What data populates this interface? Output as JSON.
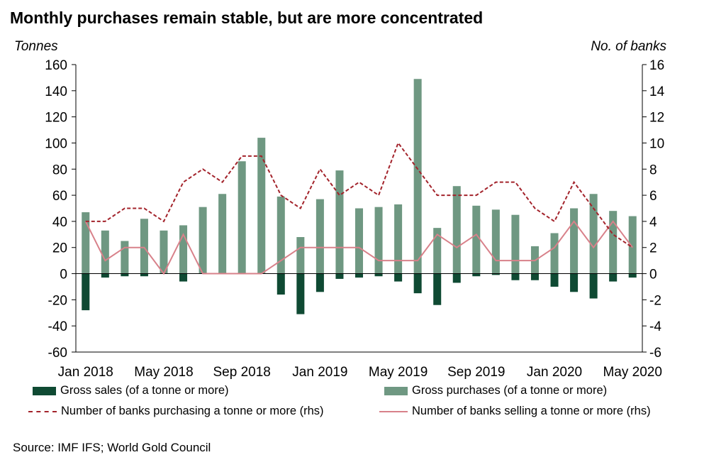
{
  "title": "Monthly purchases remain stable, but are more concentrated",
  "source": "Source: IMF IFS; World Gold Council",
  "colors": {
    "gross_sales": "#0f4a33",
    "gross_purchases": "#6f9882",
    "banks_purchasing": "#a3232b",
    "banks_selling": "#d8818a"
  },
  "chart_data": {
    "type": "bar",
    "ylabel_left": "Tonnes",
    "ylabel_right": "No. of banks",
    "ylim_left": [
      -60,
      160
    ],
    "ylim_right": [
      -6,
      16
    ],
    "yticks_left": [
      "160",
      "140",
      "120",
      "100",
      "80",
      "60",
      "40",
      "20",
      "0",
      "-20",
      "-40",
      "-60"
    ],
    "yticks_right": [
      "16",
      "14",
      "12",
      "10",
      "8",
      "6",
      "4",
      "2",
      "0",
      "-2",
      "-4",
      "-6"
    ],
    "xtick_labels": [
      {
        "label": "Jan 2018",
        "index": 0
      },
      {
        "label": "May 2018",
        "index": 4
      },
      {
        "label": "Sep 2018",
        "index": 8
      },
      {
        "label": "Jan 2019",
        "index": 12
      },
      {
        "label": "May 2019",
        "index": 16
      },
      {
        "label": "Sep 2019",
        "index": 20
      },
      {
        "label": "Jan 2020",
        "index": 24
      },
      {
        "label": "May 2020",
        "index": 28
      }
    ],
    "categories": [
      "Jan 2018",
      "Feb 2018",
      "Mar 2018",
      "Apr 2018",
      "May 2018",
      "Jun 2018",
      "Jul 2018",
      "Aug 2018",
      "Sep 2018",
      "Oct 2018",
      "Nov 2018",
      "Dec 2018",
      "Jan 2019",
      "Feb 2019",
      "Mar 2019",
      "Apr 2019",
      "May 2019",
      "Jun 2019",
      "Jul 2019",
      "Aug 2019",
      "Sep 2019",
      "Oct 2019",
      "Nov 2019",
      "Dec 2019",
      "Jan 2020",
      "Feb 2020",
      "Mar 2020",
      "Apr 2020",
      "May 2020"
    ],
    "series": [
      {
        "name": "Gross sales (of a tonne or more)",
        "kind": "bar",
        "axis": "left",
        "values": [
          -28,
          -3,
          -2,
          -2,
          0,
          -6,
          0,
          0,
          0,
          0,
          -16,
          -31,
          -14,
          -4,
          -3,
          -2,
          -6,
          -15,
          -24,
          -7,
          -2,
          -1,
          -5,
          -5,
          -10,
          -14,
          -19,
          -6,
          -3
        ]
      },
      {
        "name": "Gross purchases (of a tonne or more)",
        "kind": "bar",
        "axis": "left",
        "values": [
          47,
          33,
          25,
          42,
          33,
          37,
          51,
          61,
          86,
          104,
          59,
          28,
          57,
          79,
          50,
          51,
          53,
          149,
          35,
          67,
          52,
          49,
          45,
          21,
          31,
          50,
          61,
          48,
          44
        ]
      },
      {
        "name": "Number of banks purchasing a tonne or more (rhs)",
        "kind": "line",
        "axis": "right",
        "style": "dashed",
        "values": [
          4,
          4,
          5,
          5,
          4,
          7,
          8,
          7,
          9,
          9,
          6,
          5,
          8,
          6,
          7,
          6,
          10,
          8,
          6,
          6,
          6,
          7,
          7,
          5,
          4,
          7,
          5,
          3,
          2
        ]
      },
      {
        "name": "Number of banks selling a tonne or more (rhs)",
        "kind": "line",
        "axis": "right",
        "style": "solid",
        "values": [
          4,
          1,
          2,
          2,
          0,
          3,
          0,
          0,
          0,
          0,
          1,
          2,
          2,
          2,
          2,
          1,
          1,
          1,
          3,
          2,
          3,
          1,
          1,
          1,
          2,
          4,
          2,
          4,
          2
        ]
      }
    ]
  }
}
